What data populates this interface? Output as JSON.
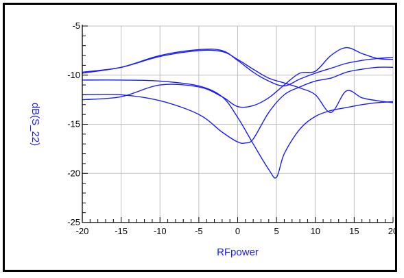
{
  "chart_data": {
    "type": "line",
    "xlabel": "RFpower",
    "ylabel": "dB(S_22)",
    "xlim": [
      -20,
      20
    ],
    "ylim": [
      -25,
      -5
    ],
    "xticks": [
      -20,
      -15,
      -10,
      -5,
      0,
      5,
      10,
      15,
      20
    ],
    "yticks": [
      -25,
      -20,
      -15,
      -10,
      -5
    ],
    "grid": true,
    "legend": "none",
    "colors": {
      "series": "#1a1aff",
      "axis_label": "#1a1aff",
      "grid": "#c0c0c0",
      "frame": "#000000"
    },
    "series": [
      {
        "x": [
          -20,
          -15,
          -10,
          -5,
          -2,
          0,
          2,
          4,
          6,
          8,
          10,
          12,
          14,
          16,
          18,
          20
        ],
        "y": [
          -12.5,
          -12.2,
          -11.0,
          -11.2,
          -12.2,
          -13.2,
          -13.1,
          -12.3,
          -11.0,
          -9.8,
          -9.6,
          -8.0,
          -7.2,
          -7.8,
          -8.3,
          -8.4
        ]
      },
      {
        "x": [
          -20,
          -15,
          -10,
          -5,
          -2,
          0,
          2,
          4,
          6,
          8,
          10,
          12,
          14,
          16,
          18,
          20
        ],
        "y": [
          -9.7,
          -9.2,
          -8.0,
          -7.4,
          -7.5,
          -8.5,
          -9.7,
          -10.6,
          -11.1,
          -10.4,
          -9.8,
          -9.3,
          -8.8,
          -8.5,
          -8.3,
          -8.2
        ]
      },
      {
        "x": [
          -20,
          -15,
          -10,
          -5,
          -2,
          0,
          2,
          4,
          5,
          6,
          8,
          10,
          12,
          14,
          16,
          18,
          20
        ],
        "y": [
          -10.5,
          -10.5,
          -10.6,
          -11.1,
          -12.2,
          -14.3,
          -17.0,
          -19.6,
          -20.4,
          -18.0,
          -15.5,
          -14.2,
          -13.6,
          -13.3,
          -13.0,
          -12.8,
          -12.7
        ]
      },
      {
        "x": [
          -20,
          -15,
          -10,
          -5,
          -2,
          0,
          1,
          2,
          4,
          6,
          8,
          10,
          12,
          14,
          16,
          18,
          20
        ],
        "y": [
          -12.0,
          -12.0,
          -12.6,
          -14.0,
          -15.8,
          -16.8,
          -16.9,
          -16.5,
          -13.8,
          -12.0,
          -11.2,
          -10.6,
          -10.3,
          -9.7,
          -9.4,
          -9.2,
          -9.2
        ]
      },
      {
        "x": [
          -20,
          -15,
          -10,
          -5,
          -2,
          0,
          2,
          4,
          6,
          8,
          10,
          12,
          14,
          16,
          18,
          20
        ],
        "y": [
          -9.8,
          -9.2,
          -8.1,
          -7.5,
          -7.6,
          -8.4,
          -9.4,
          -10.3,
          -10.8,
          -11.3,
          -12.0,
          -13.8,
          -11.6,
          -12.3,
          -12.6,
          -12.8
        ]
      }
    ]
  }
}
